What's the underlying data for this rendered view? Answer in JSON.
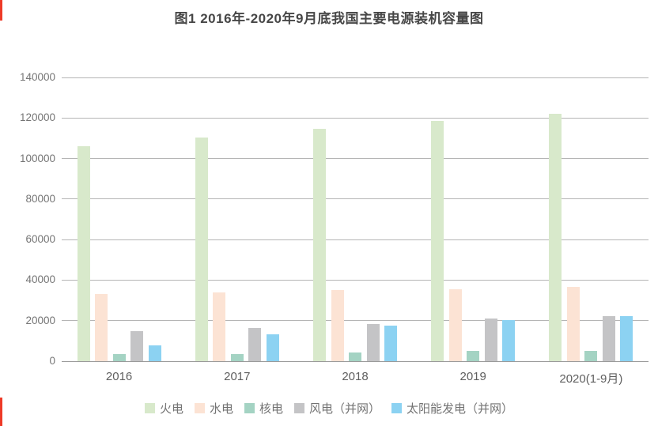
{
  "page": {
    "accent_color": "#ee3a27"
  },
  "chart_data": {
    "type": "bar",
    "title": "图1 2016年-2020年9月底我国主要电源装机容量图",
    "categories": [
      "2016",
      "2017",
      "2018",
      "2019",
      "2020(1-9月)"
    ],
    "series": [
      {
        "name": "火电",
        "color": "#d8e9cb",
        "values": [
          106000,
          110500,
          114500,
          118500,
          122000
        ]
      },
      {
        "name": "水电",
        "color": "#fce3d4",
        "values": [
          33000,
          34000,
          35000,
          35500,
          36500
        ]
      },
      {
        "name": "核电",
        "color": "#a4d3c3",
        "values": [
          3400,
          3600,
          4400,
          4900,
          5000
        ]
      },
      {
        "name": "风电（并网）",
        "color": "#c4c4c6",
        "values": [
          15000,
          16400,
          18400,
          21000,
          22400
        ]
      },
      {
        "name": "太阳能发电（并网）",
        "color": "#8cd2f2",
        "values": [
          7700,
          13200,
          17400,
          20400,
          22200
        ]
      }
    ],
    "xlabel": "",
    "ylabel": "",
    "ylim": [
      0,
      140000
    ],
    "ytick_step": 20000,
    "yticks": [
      "0",
      "20000",
      "40000",
      "60000",
      "80000",
      "100000",
      "120000",
      "140000"
    ],
    "grid": true,
    "legend_position": "bottom",
    "style": {
      "gridline_color": "#b5b5b5",
      "baseline_color": "#9a9a9a",
      "ytick_color": "#757575",
      "xtick_color": "#5f5f5f",
      "legend_text_color": "#737373",
      "title_color": "#474747"
    }
  }
}
